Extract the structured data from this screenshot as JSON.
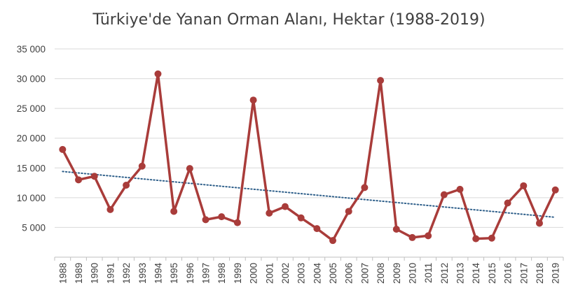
{
  "chart_data": {
    "type": "line",
    "title": "Türkiye'de Yanan Orman Alanı, Hektar (1988-2019)",
    "xlabel": "",
    "ylabel": "",
    "ylim": [
      0,
      35000
    ],
    "yticks": [
      0,
      5000,
      10000,
      15000,
      20000,
      25000,
      30000,
      35000
    ],
    "ytick_labels": [
      "",
      "5 000",
      "10 000",
      "15 000",
      "20 000",
      "25 000",
      "30 000",
      "35 000"
    ],
    "categories": [
      "1988",
      "1989",
      "1990",
      "1991",
      "1992",
      "1993",
      "1994",
      "1995",
      "1996",
      "1997",
      "1998",
      "1999",
      "2000",
      "2001",
      "2002",
      "2003",
      "2004",
      "2005",
      "2006",
      "2007",
      "2008",
      "2009",
      "2010",
      "2011",
      "2012",
      "2013",
      "2014",
      "2015",
      "2016",
      "2017",
      "2018",
      "2019"
    ],
    "series": [
      {
        "values": [
          18100,
          13000,
          13600,
          8000,
          12100,
          15300,
          30800,
          7700,
          14900,
          6300,
          6800,
          5800,
          26400,
          7400,
          8500,
          6600,
          4800,
          2800,
          7700,
          11700,
          29700,
          4700,
          3300,
          3600,
          10500,
          11400,
          3100,
          3200,
          9100,
          12000,
          5700,
          11300
        ],
        "color": "#a93c3a"
      }
    ],
    "trendline": {
      "style": "dotted",
      "color": "#2e5f8a",
      "start": 14400,
      "end": 6700
    },
    "grid": true,
    "legend": "none"
  }
}
